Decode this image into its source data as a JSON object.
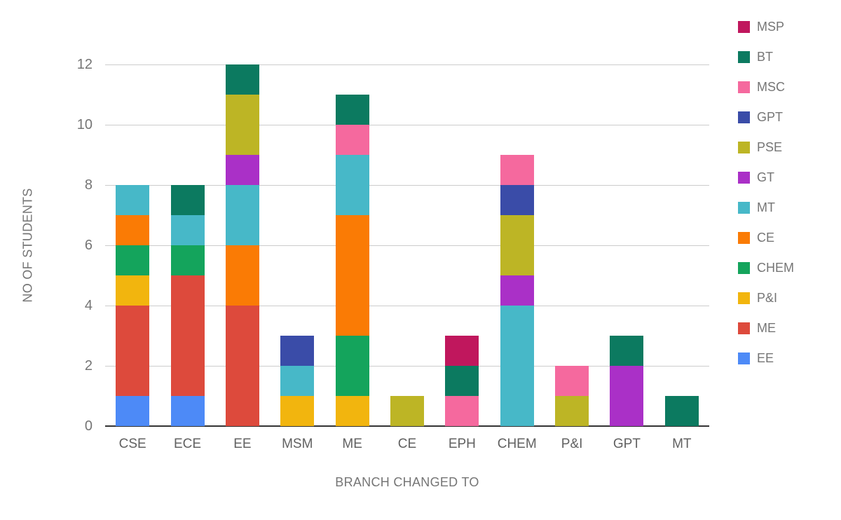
{
  "chart_data": {
    "type": "bar",
    "stacked": true,
    "title": "",
    "xlabel": "BRANCH CHANGED TO",
    "ylabel": "NO OF STUDENTS",
    "ylim": [
      0,
      12
    ],
    "yticks": [
      0,
      2,
      4,
      6,
      8,
      10,
      12
    ],
    "grid": true,
    "background": "#FFFFFF",
    "gridline_color": "#CCCCCC",
    "baseline_color": "#333333",
    "categories": [
      "CSE",
      "ECE",
      "EE",
      "MSM",
      "ME",
      "CE",
      "EPH",
      "CHEM",
      "P&I",
      "GPT",
      "MT"
    ],
    "series": [
      {
        "name": "EE",
        "color": "#4D8AF7",
        "values": [
          1,
          1,
          0,
          0,
          0,
          0,
          0,
          0,
          0,
          0,
          0
        ]
      },
      {
        "name": "ME",
        "color": "#DD4A3C",
        "values": [
          3,
          4,
          4,
          0,
          0,
          0,
          0,
          0,
          0,
          0,
          0
        ]
      },
      {
        "name": "P&I",
        "color": "#F2B50E",
        "values": [
          1,
          0,
          0,
          1,
          1,
          0,
          0,
          0,
          0,
          0,
          0
        ]
      },
      {
        "name": "CHEM",
        "color": "#14A45C",
        "values": [
          1,
          1,
          0,
          0,
          2,
          0,
          0,
          0,
          0,
          0,
          0
        ]
      },
      {
        "name": "CE",
        "color": "#FA7B05",
        "values": [
          1,
          0,
          2,
          0,
          4,
          0,
          0,
          0,
          0,
          0,
          0
        ]
      },
      {
        "name": "MT",
        "color": "#47B8C8",
        "values": [
          1,
          1,
          2,
          1,
          2,
          0,
          0,
          4,
          0,
          0,
          0
        ]
      },
      {
        "name": "GT",
        "color": "#AA30C7",
        "values": [
          0,
          0,
          1,
          0,
          0,
          0,
          0,
          1,
          0,
          2,
          0
        ]
      },
      {
        "name": "PSE",
        "color": "#BDB525",
        "values": [
          0,
          0,
          2,
          0,
          0,
          1,
          0,
          2,
          1,
          0,
          0
        ]
      },
      {
        "name": "GPT",
        "color": "#3A4CA8",
        "values": [
          0,
          0,
          0,
          1,
          0,
          0,
          0,
          1,
          0,
          0,
          0
        ]
      },
      {
        "name": "MSC",
        "color": "#F5699E",
        "values": [
          0,
          0,
          0,
          0,
          1,
          0,
          1,
          1,
          1,
          0,
          0
        ]
      },
      {
        "name": "BT",
        "color": "#0C7A60",
        "values": [
          0,
          1,
          1,
          0,
          1,
          0,
          1,
          0,
          0,
          1,
          1
        ]
      },
      {
        "name": "MSP",
        "color": "#C0175D",
        "values": [
          0,
          0,
          0,
          0,
          0,
          0,
          1,
          0,
          0,
          0,
          0
        ]
      }
    ],
    "totals": {
      "CSE": 8,
      "ECE": 8,
      "EE": 12,
      "MSM": 3,
      "ME": 11,
      "CE": 1,
      "EPH": 3,
      "CHEM": 9,
      "P&I": 2,
      "GPT": 3,
      "MT": 1
    },
    "legend": {
      "position": "right",
      "order": [
        "MSP",
        "BT",
        "MSC",
        "GPT",
        "PSE",
        "GT",
        "MT",
        "CE",
        "CHEM",
        "P&I",
        "ME",
        "EE"
      ]
    }
  }
}
